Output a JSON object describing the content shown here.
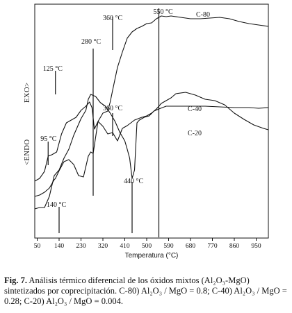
{
  "figure": {
    "label": "Fig. 7.",
    "caption_text": " Análisis térmico diferencial de los óxidos mixtos (Al₂O₃-MgO) sintetizados por coprecipitación. C-80) Al₂O₃ / MgO = 0.8; C-40) Al₂O₃ / MgO = 0.28; C-20) Al₂O₃ / MgO = 0.004."
  },
  "chart_data": {
    "type": "line",
    "xlabel": "Temperatura (°C)",
    "xticks": [
      50,
      140,
      230,
      320,
      410,
      500,
      590,
      680,
      770,
      860,
      950
    ],
    "xlim": [
      40,
      1000
    ],
    "ylabel_top": "EXO>",
    "ylabel_bottom": "<ENDO",
    "y_units_shown": false,
    "grid": false,
    "series": [
      {
        "name": "C-80",
        "x": [
          40,
          60,
          80,
          100,
          120,
          125,
          140,
          160,
          180,
          200,
          220,
          240,
          260,
          270,
          280,
          290,
          300,
          320,
          340,
          350,
          360,
          380,
          400,
          420,
          440,
          460,
          480,
          500,
          520,
          540,
          550,
          560,
          580,
          600,
          640,
          680,
          720,
          760,
          800,
          840,
          880,
          920,
          960,
          1000
        ],
        "y": [
          60,
          62,
          66,
          72,
          84,
          86,
          97,
          110,
          113,
          106,
          90,
          88,
          118,
          124,
          122,
          145,
          168,
          180,
          183,
          196,
          213,
          246,
          268,
          288,
          297,
          302,
          305,
          309,
          310,
          316,
          318,
          320,
          319,
          320,
          318,
          316,
          316,
          317,
          318,
          316,
          312,
          309,
          307,
          305
        ]
      },
      {
        "name": "C-40",
        "x": [
          40,
          60,
          80,
          95,
          110,
          130,
          150,
          170,
          190,
          210,
          230,
          250,
          265,
          275,
          285,
          300,
          320,
          340,
          360,
          380,
          400,
          420,
          450,
          480,
          500,
          520,
          540,
          560,
          580,
          600,
          620,
          660,
          700,
          740,
          780,
          820,
          860,
          900,
          940,
          980,
          1000
        ],
        "y": [
          82,
          86,
          96,
          118,
          120,
          124,
          150,
          166,
          170,
          174,
          184,
          190,
          196,
          188,
          157,
          168,
          161,
          150,
          152,
          140,
          158,
          162,
          170,
          174,
          176,
          180,
          186,
          194,
          198,
          202,
          208,
          210,
          206,
          200,
          198,
          192,
          180,
          171,
          163,
          158,
          156
        ]
      },
      {
        "name": "C-20",
        "x": [
          40,
          60,
          80,
          100,
          120,
          140,
          160,
          180,
          200,
          230,
          250,
          260,
          270,
          290,
          310,
          330,
          350,
          370,
          390,
          410,
          420,
          430,
          440,
          450,
          460,
          470,
          490,
          510,
          530,
          550,
          580,
          620,
          680,
          740,
          800,
          860,
          920,
          960,
          1000
        ],
        "y": [
          42,
          44,
          44,
          60,
          90,
          98,
          115,
          128,
          148,
          172,
          184,
          200,
          207,
          204,
          195,
          190,
          180,
          168,
          152,
          140,
          128,
          115,
          86,
          98,
          166,
          170,
          174,
          176,
          183,
          186,
          190,
          190,
          190,
          190,
          189,
          188,
          188,
          187,
          188
        ]
      }
    ],
    "series_labels": [
      "C-80",
      "C-40",
      "C-20"
    ],
    "annotations": [
      {
        "text": "550 °C",
        "x": 550
      },
      {
        "text": "360 °C",
        "x": 360
      },
      {
        "text": "280 °C",
        "x": 280
      },
      {
        "text": "125 °C",
        "x": 125
      },
      {
        "text": "360 °C",
        "x": 360
      },
      {
        "text": "95 °C",
        "x": 95
      },
      {
        "text": "440 °C",
        "x": 440
      },
      {
        "text": "140 °C",
        "x": 140
      }
    ]
  }
}
